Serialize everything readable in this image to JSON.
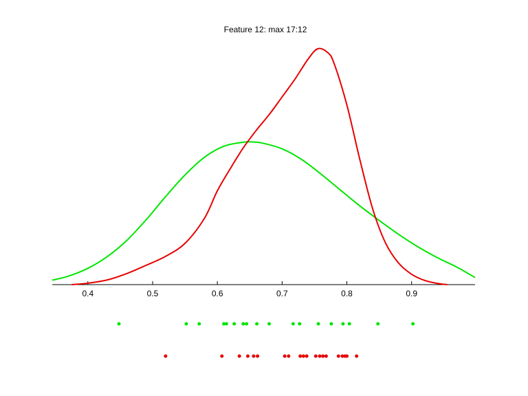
{
  "chart_data": {
    "type": "line",
    "title": "Feature 12: max 17:12",
    "xlabel": "",
    "ylabel": "",
    "xlim": [
      0.345,
      0.998
    ],
    "ylim": [
      0,
      1
    ],
    "grid": false,
    "x_ticks": [
      "0.4",
      "0.5",
      "0.6",
      "0.7",
      "0.8",
      "0.9"
    ],
    "tick_values": [
      0.4,
      0.5,
      0.6,
      0.7,
      0.8,
      0.9
    ],
    "series": [
      {
        "color": "#00e600",
        "x": [
          0.345,
          0.37,
          0.4,
          0.43,
          0.46,
          0.49,
          0.52,
          0.55,
          0.58,
          0.61,
          0.64,
          0.655,
          0.67,
          0.7,
          0.73,
          0.76,
          0.79,
          0.82,
          0.85,
          0.88,
          0.91,
          0.94,
          0.97,
          0.998
        ],
        "y": [
          0.019,
          0.036,
          0.069,
          0.119,
          0.187,
          0.275,
          0.373,
          0.465,
          0.54,
          0.587,
          0.604,
          0.605,
          0.6,
          0.576,
          0.531,
          0.469,
          0.401,
          0.334,
          0.272,
          0.213,
          0.16,
          0.114,
          0.074,
          0.03
        ]
      },
      {
        "color": "#e60000",
        "x": [
          0.375,
          0.4,
          0.43,
          0.46,
          0.49,
          0.52,
          0.55,
          0.58,
          0.6,
          0.62,
          0.64,
          0.66,
          0.68,
          0.7,
          0.72,
          0.74,
          0.755,
          0.77,
          0.78,
          0.8,
          0.82,
          0.84,
          0.86,
          0.88,
          0.9,
          0.92,
          0.94,
          0.955
        ],
        "y": [
          0.0,
          0.006,
          0.02,
          0.047,
          0.082,
          0.12,
          0.175,
          0.281,
          0.398,
          0.492,
          0.58,
          0.654,
          0.721,
          0.796,
          0.872,
          0.956,
          1.0,
          0.985,
          0.94,
          0.762,
          0.531,
          0.32,
          0.175,
          0.091,
          0.044,
          0.018,
          0.005,
          0.0
        ]
      }
    ],
    "scatter_rows": [
      {
        "color": "#00e600",
        "x": [
          0.448,
          0.552,
          0.572,
          0.61,
          0.614,
          0.626,
          0.64,
          0.645,
          0.661,
          0.68,
          0.717,
          0.727,
          0.756,
          0.776,
          0.794,
          0.804,
          0.848,
          0.902
        ]
      },
      {
        "color": "#e60000",
        "x": [
          0.52,
          0.607,
          0.634,
          0.647,
          0.656,
          0.662,
          0.704,
          0.71,
          0.728,
          0.733,
          0.738,
          0.752,
          0.758,
          0.763,
          0.768,
          0.787,
          0.793,
          0.797,
          0.8,
          0.815
        ]
      }
    ]
  }
}
